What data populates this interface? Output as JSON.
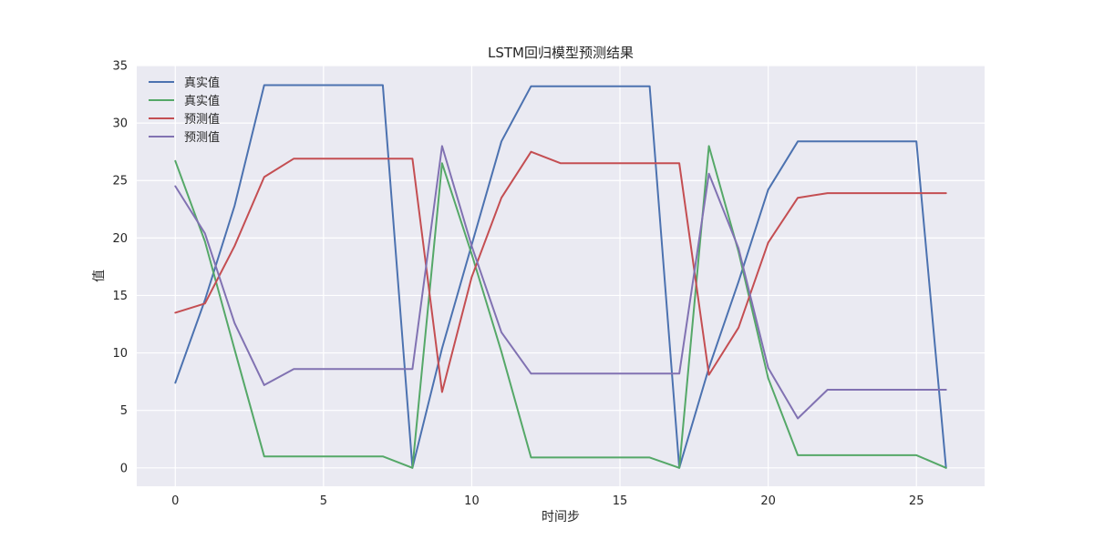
{
  "chart_data": {
    "type": "line",
    "title": "LSTM回归模型预测结果",
    "xlabel": "时间步",
    "ylabel": "值",
    "xlim": [
      -1.3,
      27.3
    ],
    "ylim": [
      -1.6,
      35
    ],
    "xticks": [
      0,
      5,
      10,
      15,
      20,
      25
    ],
    "yticks": [
      0,
      5,
      10,
      15,
      20,
      25,
      30,
      35
    ],
    "grid": true,
    "legend_position": "top-left",
    "x": [
      0,
      1,
      2,
      3,
      4,
      5,
      6,
      7,
      8,
      9,
      10,
      11,
      12,
      13,
      14,
      15,
      16,
      17,
      18,
      19,
      20,
      21,
      22,
      23,
      24,
      25,
      26
    ],
    "series": [
      {
        "name": "真实值",
        "color": "#4c72b0",
        "values": [
          7.4,
          14.6,
          22.8,
          33.3,
          33.3,
          33.3,
          33.3,
          33.3,
          0.0,
          10.4,
          19.4,
          28.4,
          33.2,
          33.2,
          33.2,
          33.2,
          33.2,
          0.0,
          8.7,
          16.2,
          24.2,
          28.4,
          28.4,
          28.4,
          28.4,
          28.4,
          0.0
        ]
      },
      {
        "name": "真实值",
        "color": "#55a868",
        "values": [
          26.7,
          19.7,
          10.3,
          1.0,
          1.0,
          1.0,
          1.0,
          1.0,
          0.0,
          26.5,
          18.6,
          10.1,
          0.9,
          0.9,
          0.9,
          0.9,
          0.9,
          0.0,
          28.0,
          18.8,
          7.8,
          1.1,
          1.1,
          1.1,
          1.1,
          1.1,
          0.0
        ]
      },
      {
        "name": "预测值",
        "color": "#c44e52",
        "values": [
          13.5,
          14.3,
          19.3,
          25.3,
          26.9,
          26.9,
          26.9,
          26.9,
          26.9,
          6.6,
          16.6,
          23.5,
          27.5,
          26.5,
          26.5,
          26.5,
          26.5,
          26.5,
          8.1,
          12.2,
          19.6,
          23.5,
          23.9,
          23.9,
          23.9,
          23.9,
          23.9
        ]
      },
      {
        "name": "预测值",
        "color": "#8172b2",
        "values": [
          24.5,
          20.4,
          12.6,
          7.2,
          8.6,
          8.6,
          8.6,
          8.6,
          8.6,
          28.0,
          19.3,
          11.8,
          8.2,
          8.2,
          8.2,
          8.2,
          8.2,
          8.2,
          25.6,
          19.1,
          8.7,
          4.3,
          6.8,
          6.8,
          6.8,
          6.8,
          6.8
        ]
      }
    ]
  },
  "colors": {
    "plot_background": "#eaeaf2",
    "grid": "#ffffff",
    "text": "#262626"
  }
}
